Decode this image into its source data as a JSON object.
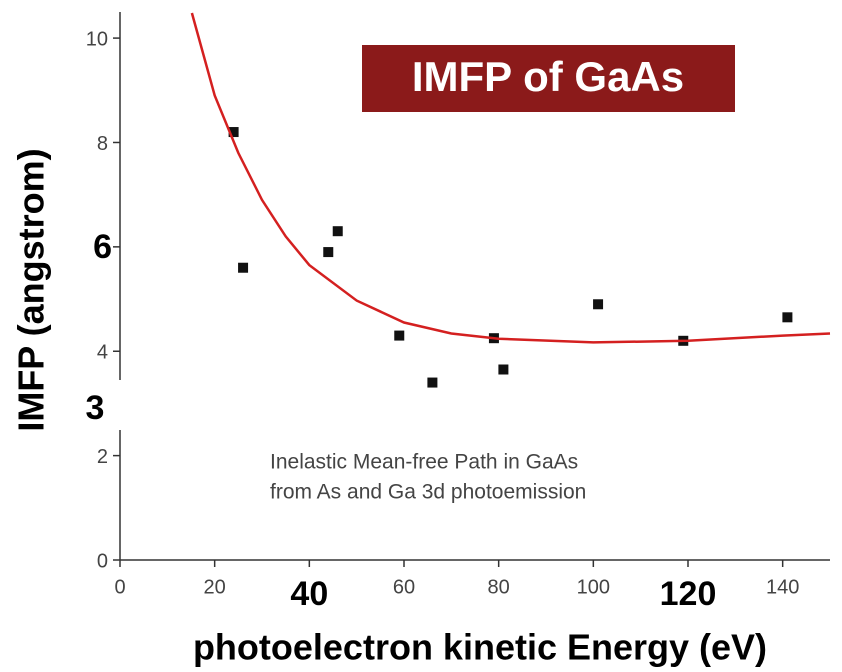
{
  "chart_data": {
    "type": "scatter",
    "title": "IMFP of GaAs",
    "xlabel": "photoelectron kinetic Energy (eV)",
    "ylabel": "IMFP (angstrom)",
    "annotations": [
      "3",
      "Inelastic Mean-free Path in GaAs",
      "from As and Ga 3d photoemission"
    ],
    "xlim": [
      0,
      150
    ],
    "ylim": [
      0,
      10.5
    ],
    "xticks": [
      0,
      20,
      40,
      60,
      80,
      100,
      120,
      140
    ],
    "yticks": [
      0,
      2,
      4,
      6,
      8,
      10
    ],
    "title_color": "#8b1a1a",
    "series": [
      {
        "type": "scatter",
        "color": "#111111",
        "x": [
          24,
          26,
          44,
          46,
          59,
          66,
          79,
          81,
          101,
          119,
          141
        ],
        "values": [
          8.2,
          5.6,
          5.9,
          6.3,
          4.3,
          3.4,
          4.25,
          3.65,
          4.9,
          4.2,
          4.65
        ]
      },
      {
        "type": "line",
        "color": "#d42020",
        "x": [
          15.2,
          20,
          25,
          30,
          35,
          40,
          50,
          60,
          70,
          80,
          100,
          120,
          140,
          150
        ],
        "values": [
          10.48,
          8.9,
          7.8,
          6.9,
          6.2,
          5.65,
          4.97,
          4.55,
          4.34,
          4.24,
          4.17,
          4.2,
          4.3,
          4.34
        ]
      }
    ]
  }
}
